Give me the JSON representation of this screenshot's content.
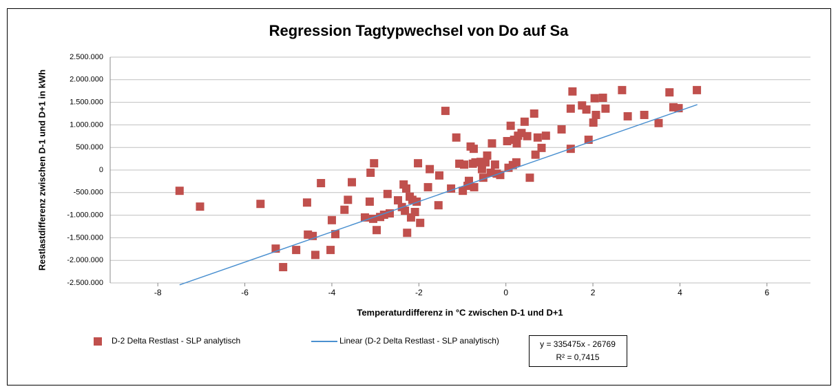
{
  "chart_data": {
    "type": "scatter",
    "title": "Regression Tagtypwechsel von Do auf Sa",
    "xlabel": "Temperaturdifferenz in °C zwischen D-1 und D+1",
    "ylabel": "Restlastdifferenz zwischen D-1 und D+1 in kWh",
    "xlim": [
      -9,
      7
    ],
    "xticks": [
      -8,
      -6,
      -4,
      -2,
      0,
      2,
      4,
      6
    ],
    "ylim": [
      -2500000,
      2500000
    ],
    "yticks": [
      {
        "value": -2500000,
        "label": "-2.500.000"
      },
      {
        "value": -2000000,
        "label": "-2.000.000"
      },
      {
        "value": -1500000,
        "label": "-1.500.000"
      },
      {
        "value": -1000000,
        "label": "-1.000.000"
      },
      {
        "value": -500000,
        "label": "-500.000"
      },
      {
        "value": 0,
        "label": "0"
      },
      {
        "value": 500000,
        "label": "500.000"
      },
      {
        "value": 1000000,
        "label": "1.000.000"
      },
      {
        "value": 1500000,
        "label": "1.500.000"
      },
      {
        "value": 2000000,
        "label": "2.000.000"
      },
      {
        "value": 2500000,
        "label": "2.500.000"
      }
    ],
    "grid": true,
    "series": [
      {
        "name": "D-2 Delta Restlast - SLP analytisch",
        "color": "#c0504d",
        "x": [
          -7.5,
          -7.03,
          -5.64,
          -5.29,
          -5.12,
          -4.82,
          -4.57,
          -4.55,
          -4.44,
          -4.38,
          -4.25,
          -4.03,
          -4.0,
          -3.92,
          -3.71,
          -3.63,
          -3.54,
          -3.24,
          -3.13,
          -3.11,
          -3.05,
          -3.03,
          -2.97,
          -2.89,
          -2.8,
          -2.72,
          -2.67,
          -2.48,
          -2.39,
          -2.35,
          -2.32,
          -2.29,
          -2.27,
          -2.21,
          -2.18,
          -2.15,
          -2.09,
          -2.05,
          -2.02,
          -1.97,
          -1.79,
          -1.75,
          -1.55,
          -1.53,
          -1.39,
          -1.26,
          -1.14,
          -1.07,
          -0.99,
          -0.96,
          -0.88,
          -0.85,
          -0.81,
          -0.76,
          -0.74,
          -0.73,
          -0.7,
          -0.58,
          -0.55,
          -0.52,
          -0.47,
          -0.43,
          -0.35,
          -0.32,
          -0.25,
          -0.21,
          -0.13,
          0.03,
          0.06,
          0.11,
          0.16,
          0.19,
          0.24,
          0.25,
          0.28,
          0.36,
          0.43,
          0.49,
          0.55,
          0.65,
          0.68,
          0.73,
          0.82,
          0.92,
          1.28,
          1.49,
          1.49,
          1.53,
          1.75,
          1.85,
          1.9,
          2.01,
          2.04,
          2.07,
          2.23,
          2.29,
          2.67,
          2.8,
          3.18,
          3.51,
          3.76,
          3.85,
          3.97,
          4.39
        ],
        "values": [
          -460000,
          -810000,
          -750000,
          -1740000,
          -2150000,
          -1770000,
          -720000,
          -1430000,
          -1460000,
          -1880000,
          -290000,
          -1770000,
          -1110000,
          -1420000,
          -880000,
          -660000,
          -270000,
          -1050000,
          -700000,
          -60000,
          -1080000,
          150000,
          -1330000,
          -1040000,
          -990000,
          -530000,
          -960000,
          -670000,
          -820000,
          -320000,
          -900000,
          -410000,
          -1390000,
          -590000,
          -1050000,
          -660000,
          -930000,
          -700000,
          150000,
          -1170000,
          -380000,
          20000,
          -780000,
          -120000,
          1310000,
          -410000,
          720000,
          140000,
          -460000,
          120000,
          -350000,
          -240000,
          520000,
          140000,
          470000,
          -380000,
          170000,
          180000,
          20000,
          -170000,
          170000,
          320000,
          -60000,
          590000,
          120000,
          -80000,
          -110000,
          640000,
          50000,
          980000,
          110000,
          670000,
          170000,
          590000,
          760000,
          820000,
          1070000,
          750000,
          -170000,
          1250000,
          340000,
          720000,
          490000,
          760000,
          900000,
          470000,
          1360000,
          1740000,
          1430000,
          1340000,
          670000,
          1050000,
          1590000,
          1220000,
          1600000,
          1360000,
          1770000,
          1190000,
          1220000,
          1040000,
          1720000,
          1390000,
          1370000,
          1770000
        ]
      }
    ],
    "trendline": {
      "name": "Linear (D-2 Delta Restlast - SLP analytisch)",
      "color": "#4a90d0",
      "slope": 335475,
      "intercept": -26769,
      "x_range": [
        -7.5,
        4.4
      ],
      "equation": "y = 335475x - 26769",
      "r_squared": "R² = 0,7415"
    }
  }
}
